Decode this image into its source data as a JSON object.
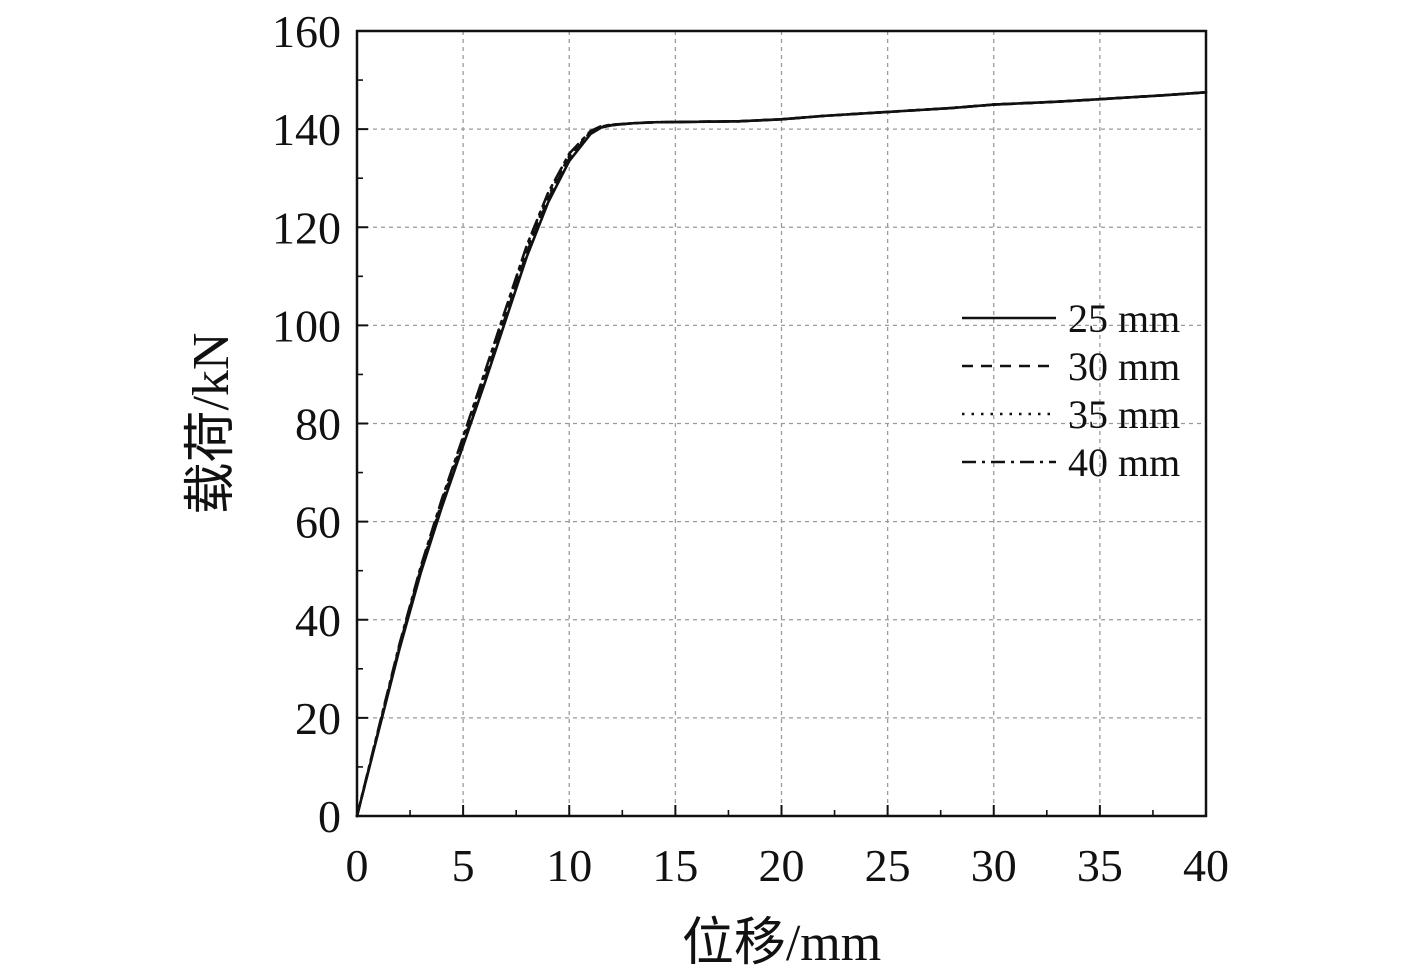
{
  "chart_data": {
    "type": "line",
    "title": "",
    "xlabel": "位移/mm",
    "ylabel": "载荷/kN",
    "xlim": [
      0,
      40
    ],
    "ylim": [
      0,
      160
    ],
    "xticks": [
      0,
      5,
      10,
      15,
      20,
      25,
      30,
      35,
      40
    ],
    "yticks": [
      0,
      20,
      40,
      60,
      80,
      100,
      120,
      140,
      160
    ],
    "grid": true,
    "legend_position": "right",
    "series": [
      {
        "name": "25 mm",
        "line_style": "solid",
        "color": "#111111",
        "x": [
          0,
          1,
          2,
          3,
          4,
          5,
          6,
          7,
          8,
          9,
          10,
          11,
          11.5,
          12,
          13,
          14,
          16,
          18,
          20,
          22,
          25,
          28,
          30,
          33,
          35,
          38,
          40
        ],
        "y": [
          0,
          17,
          34,
          49.5,
          63,
          75.5,
          88,
          101,
          114,
          125,
          133.5,
          139,
          140.3,
          140.8,
          141.2,
          141.4,
          141.5,
          141.6,
          142,
          142.7,
          143.5,
          144.3,
          145,
          145.6,
          146.1,
          146.9,
          147.5
        ]
      },
      {
        "name": "30 mm",
        "line_style": "dashed",
        "color": "#111111",
        "x": [
          0,
          1,
          2,
          3,
          4,
          5,
          6,
          7,
          8,
          9,
          10,
          11,
          11.5,
          12,
          13,
          14,
          16,
          18,
          20,
          22,
          25,
          28,
          30,
          33,
          35,
          38,
          40
        ],
        "y": [
          0,
          17.2,
          34.3,
          49.9,
          63.5,
          76,
          88.7,
          101.8,
          114.8,
          125.7,
          134,
          139.2,
          140.4,
          140.8,
          141.2,
          141.4,
          141.5,
          141.6,
          142,
          142.7,
          143.5,
          144.3,
          145,
          145.6,
          146.1,
          146.9,
          147.5
        ]
      },
      {
        "name": "35 mm",
        "line_style": "dotted",
        "color": "#111111",
        "x": [
          0,
          1,
          2,
          3,
          4,
          5,
          6,
          7,
          8,
          9,
          10,
          11,
          11.5,
          12,
          13,
          14,
          16,
          18,
          20,
          22,
          25,
          28,
          30,
          33,
          35,
          38,
          40
        ],
        "y": [
          0,
          17.4,
          34.6,
          50.3,
          64,
          76.6,
          89.4,
          102.5,
          115.5,
          126.3,
          134.5,
          139.4,
          140.5,
          140.9,
          141.2,
          141.4,
          141.5,
          141.6,
          142,
          142.7,
          143.5,
          144.3,
          145,
          145.6,
          146.1,
          146.9,
          147.5
        ]
      },
      {
        "name": "40 mm",
        "line_style": "dash-dot",
        "color": "#111111",
        "x": [
          0,
          1,
          2,
          3,
          4,
          5,
          6,
          7,
          8,
          9,
          10,
          11,
          11.5,
          12,
          13,
          14,
          16,
          18,
          20,
          22,
          25,
          28,
          30,
          33,
          35,
          38,
          40
        ],
        "y": [
          0,
          17.6,
          35,
          50.8,
          64.6,
          77.3,
          90.2,
          103.3,
          116.3,
          127,
          135,
          139.6,
          140.6,
          140.9,
          141.2,
          141.4,
          141.5,
          141.6,
          142,
          142.7,
          143.5,
          144.3,
          145,
          145.6,
          146.1,
          146.9,
          147.5
        ]
      }
    ]
  }
}
